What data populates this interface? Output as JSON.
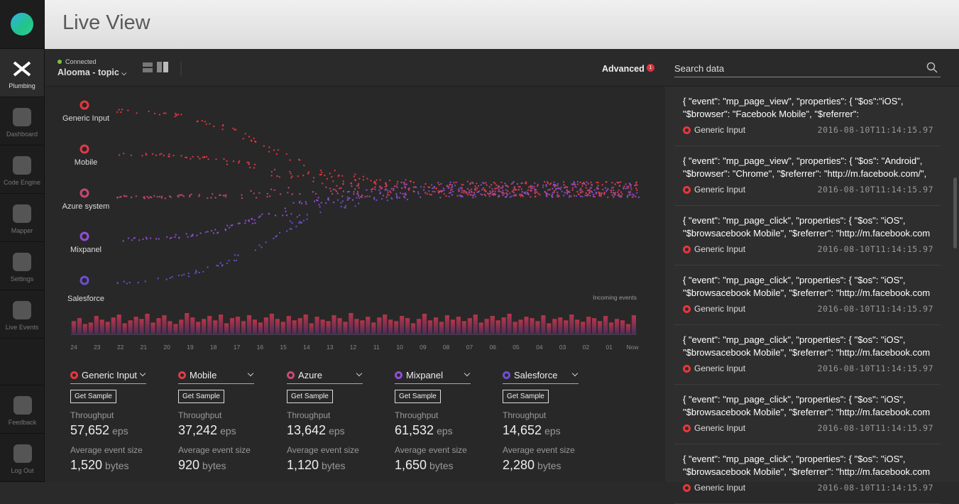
{
  "sidebar": {
    "items": [
      {
        "label": "Plumbing",
        "active": true
      },
      {
        "label": "Dashboard",
        "active": false
      },
      {
        "label": "Code Engine",
        "active": false
      },
      {
        "label": "Mapper",
        "active": false
      },
      {
        "label": "Settings",
        "active": false
      },
      {
        "label": "Live Events",
        "active": false
      },
      {
        "label": "Feedback",
        "active": false
      },
      {
        "label": "Log Out",
        "active": false
      }
    ]
  },
  "header": {
    "title": "Live View"
  },
  "toolbar": {
    "status": "Connected",
    "topic": "Alooma - topic",
    "advanced": "Advanced",
    "badge": "1",
    "search_placeholder": "Search data"
  },
  "flow": {
    "sources": [
      {
        "name": "Generic Input",
        "color": "#e8363c"
      },
      {
        "name": "Mobile",
        "color": "#e23a4a"
      },
      {
        "name": "Azure system",
        "color": "#c84778"
      },
      {
        "name": "Mixpanel",
        "color": "#8f4fd6"
      },
      {
        "name": "Salesforce",
        "color": "#6f4fd0"
      }
    ],
    "incoming_label": "Incoming events",
    "timeline": [
      "24",
      "23",
      "22",
      "21",
      "20",
      "19",
      "18",
      "17",
      "16",
      "15",
      "14",
      "13",
      "12",
      "11",
      "10",
      "09",
      "08",
      "07",
      "06",
      "05",
      "04",
      "03",
      "02",
      "01",
      "Now"
    ],
    "incoming_events": {
      "values": [
        18,
        22,
        14,
        16,
        25,
        20,
        17,
        23,
        27,
        15,
        19,
        24,
        21,
        28,
        16,
        22,
        26,
        18,
        14,
        20,
        29,
        23,
        17,
        21,
        25,
        19,
        27,
        15,
        22,
        24,
        18,
        26,
        20,
        16,
        23,
        28,
        21,
        17,
        25,
        19,
        22,
        27,
        15,
        24,
        20,
        18,
        26,
        22,
        17,
        29,
        21,
        19,
        24,
        16,
        23,
        27,
        20,
        18,
        25,
        22,
        15,
        21,
        28,
        19,
        23,
        17,
        26,
        20,
        24,
        18,
        22,
        27,
        16,
        21,
        25,
        19,
        23,
        28,
        17,
        20,
        24,
        22,
        18,
        26,
        15,
        21,
        23,
        19,
        27,
        20,
        17,
        24,
        22,
        18,
        25,
        16,
        21,
        19,
        14,
        26
      ]
    }
  },
  "stats": {
    "button": "Get Sample",
    "throughput_label": "Throughput",
    "throughput_unit": "eps",
    "size_label": "Average event size",
    "size_unit": "bytes",
    "cards": [
      {
        "name": "Generic Input",
        "color": "#e8363c",
        "throughput": "57,652",
        "size": "1,520"
      },
      {
        "name": "Mobile",
        "color": "#e23a4a",
        "throughput": "37,242",
        "size": "920"
      },
      {
        "name": "Azure",
        "color": "#c84778",
        "throughput": "13,642",
        "size": "1,120"
      },
      {
        "name": "Mixpanel",
        "color": "#8f4fd6",
        "throughput": "61,532",
        "size": "1,650"
      },
      {
        "name": "Salesforce",
        "color": "#6f4fd0",
        "throughput": "14,652",
        "size": "2,280"
      }
    ]
  },
  "events": [
    {
      "text": "{ \"event\": \"mp_page_view\", \"properties\": { \"$os\":\"iOS\", \"$browser\": \"Facebook Mobile\", \"$referrer\": \"http://m.facebook.com\",",
      "source": "Generic Input",
      "time": "2016-08-10T11:14:15.97"
    },
    {
      "text": "{ \"event\": \"mp_page_view\", \"properties\": { \"$os\": \"Android\", \"$browser\": \"Chrome\", \"$referrer\": \"http://m.facebook.com/\",",
      "source": "Generic Input",
      "time": "2016-08-10T11:14:15.97"
    },
    {
      "text": "{ \"event\": \"mp_page_click\", \"properties\": { \"$os\": \"iOS\", \"$browsacebook Mobile\", \"$referrer\": \"http://m.facebook.com “event",
      "source": "Generic Input",
      "time": "2016-08-10T11:14:15.97"
    },
    {
      "text": "{ \"event\": \"mp_page_click\", \"properties\": { \"$os\": \"iOS\", \"$browsacebook Mobile\", \"$referrer\": \"http://m.facebook.com “event",
      "source": "Generic Input",
      "time": "2016-08-10T11:14:15.97"
    },
    {
      "text": "{ \"event\": \"mp_page_click\", \"properties\": { \"$os\": \"iOS\", \"$browsacebook Mobile\", \"$referrer\": \"http://m.facebook.com “event",
      "source": "Generic Input",
      "time": "2016-08-10T11:14:15.97"
    },
    {
      "text": "{ \"event\": \"mp_page_click\", \"properties\": { \"$os\": \"iOS\", \"$browsacebook Mobile\", \"$referrer\": \"http://m.facebook.com “event",
      "source": "Generic Input",
      "time": "2016-08-10T11:14:15.97"
    },
    {
      "text": "{ \"event\": \"mp_page_click\", \"properties\": { \"$os\": \"iOS\", \"$browsacebook Mobile\", \"$referrer\": \"http://m.facebook.com “event",
      "source": "Generic Input",
      "time": "2016-08-10T11:14:15.97"
    }
  ]
}
